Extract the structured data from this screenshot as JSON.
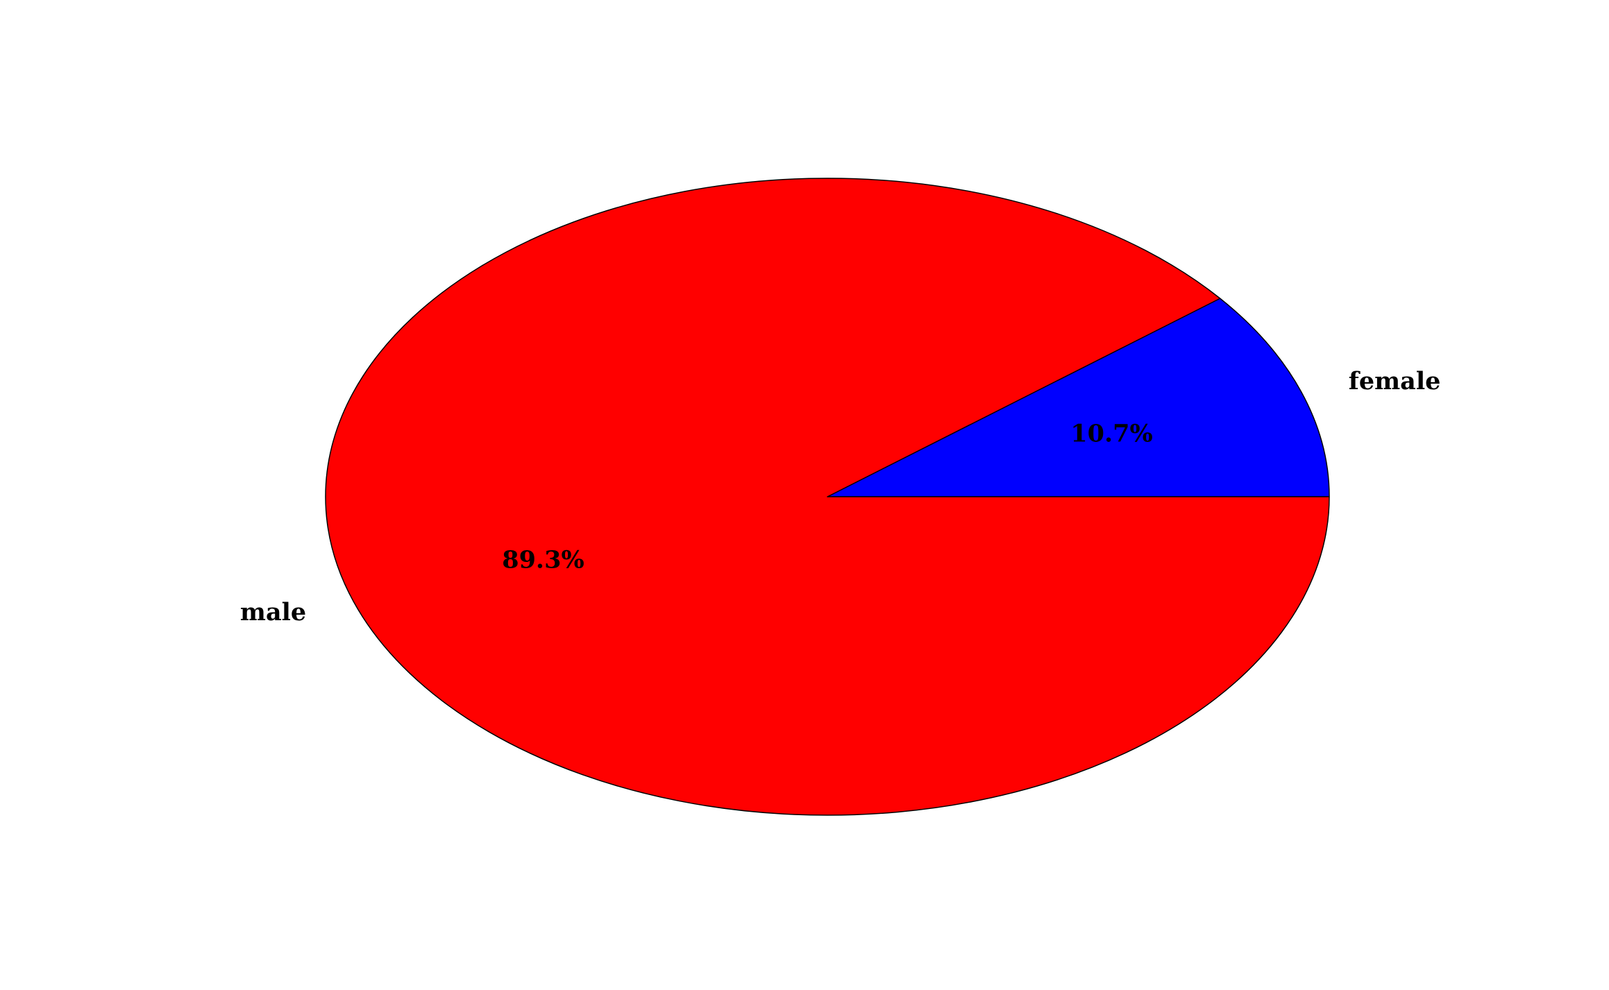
{
  "chart_data": {
    "type": "pie",
    "slices": [
      {
        "label": "female",
        "value": 10.7,
        "pct_label": "10.7%",
        "color": "#0000ff"
      },
      {
        "label": "male",
        "value": 89.3,
        "pct_label": "89.3%",
        "color": "#ff0000"
      }
    ],
    "start_angle_deg": 0,
    "direction": "counterclockwise",
    "edge_color": "#000000"
  }
}
